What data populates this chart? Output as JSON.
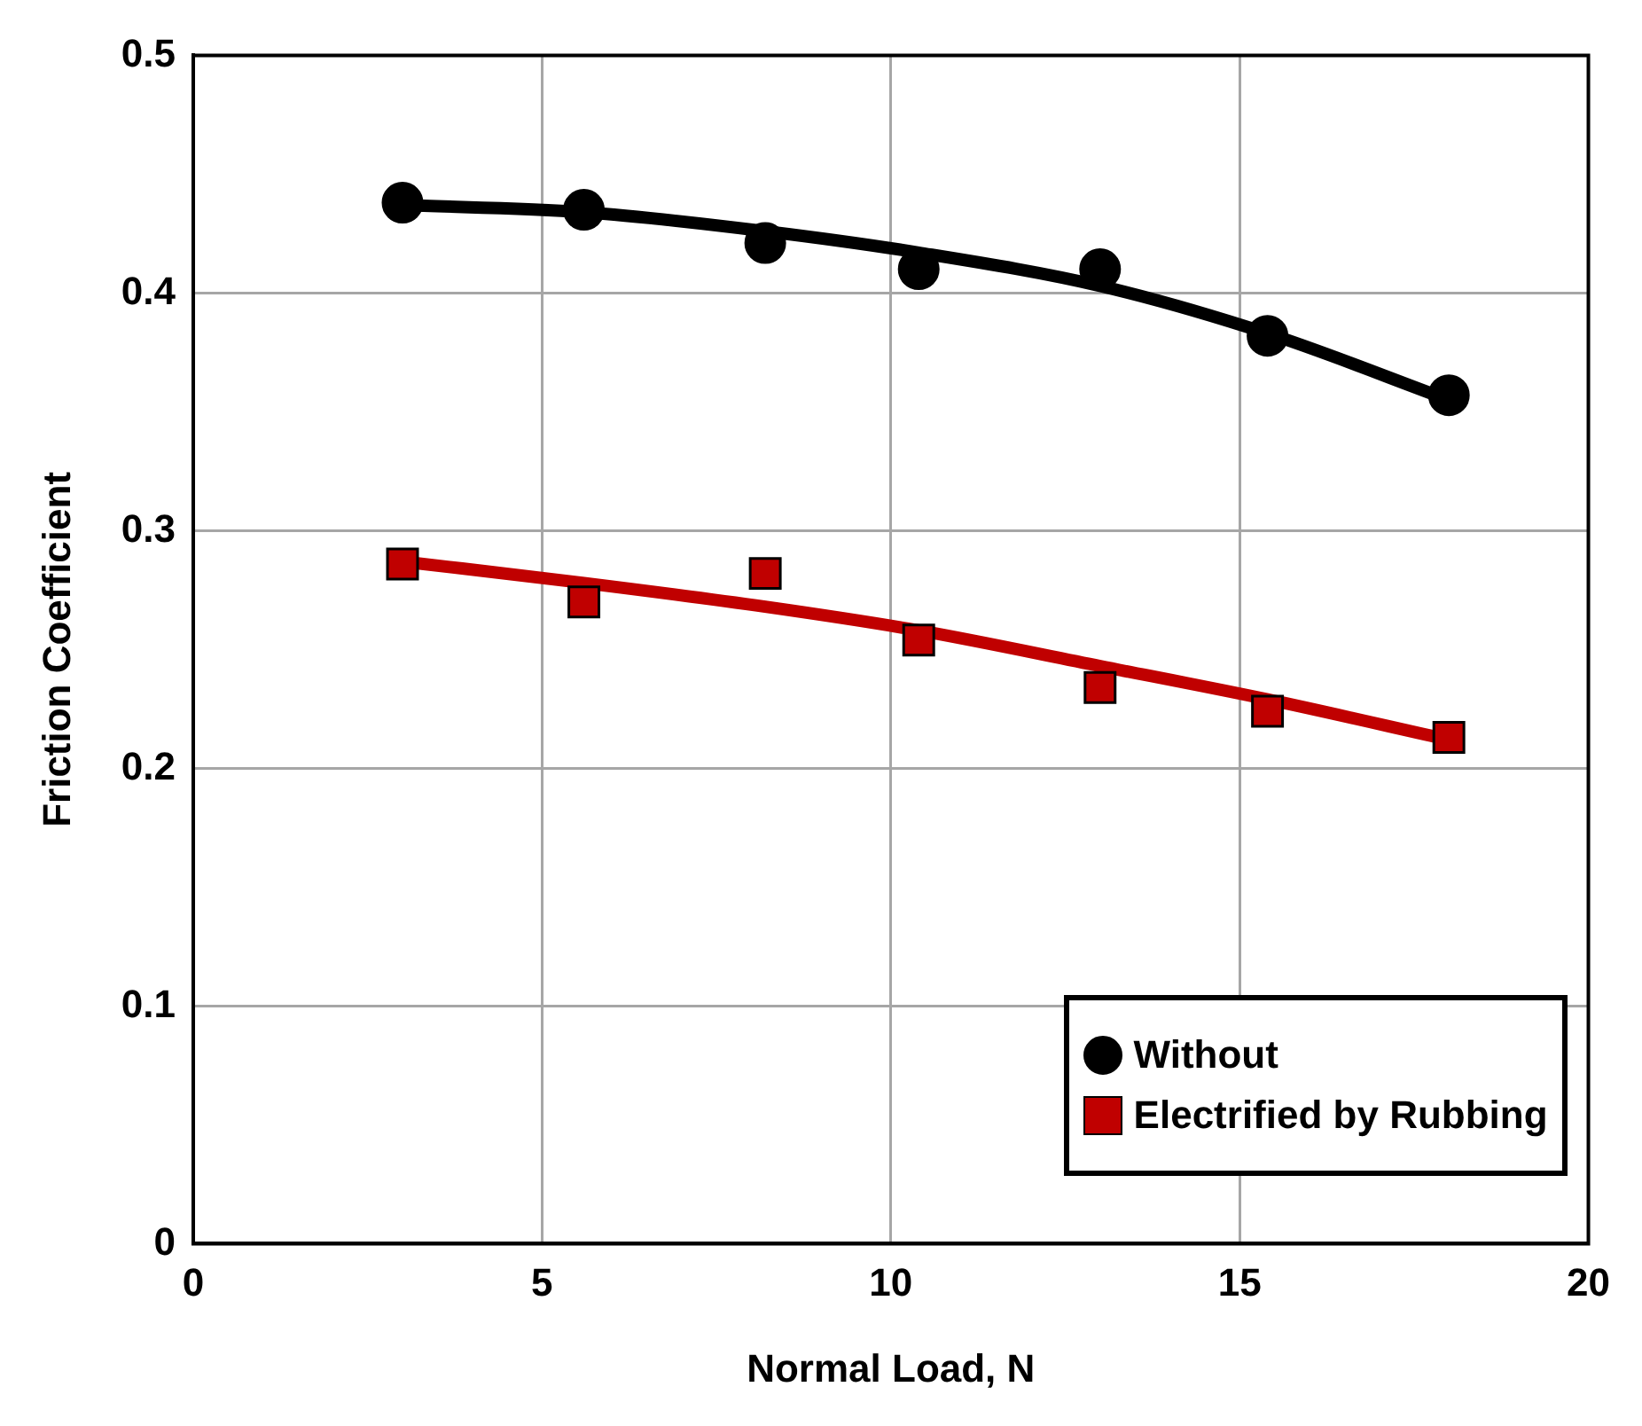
{
  "chart_data": {
    "type": "scatter",
    "xlabel": "Normal Load, N",
    "ylabel": "Friction Coefficient",
    "xlim": [
      0,
      20
    ],
    "xticks": [
      0,
      5,
      10,
      15,
      20
    ],
    "ylim": [
      0,
      0.5
    ],
    "yticks": [
      0,
      0.1,
      0.2,
      0.3,
      0.4,
      0.5
    ],
    "grid": true,
    "legend": "bottom right",
    "series": [
      {
        "name": "Without",
        "marker": "circle",
        "color": "#000000",
        "x": [
          3,
          5.6,
          8.2,
          10.4,
          13,
          15.4,
          18
        ],
        "values": [
          0.438,
          0.435,
          0.421,
          0.41,
          0.41,
          0.382,
          0.357
        ]
      },
      {
        "name": "Electrified by Rubbing",
        "marker": "square",
        "color": "#c00000",
        "x": [
          3,
          5.6,
          8.2,
          10.4,
          13,
          15.4,
          18
        ],
        "values": [
          0.286,
          0.27,
          0.282,
          0.254,
          0.234,
          0.224,
          0.213
        ]
      },
      {
        "type": "line",
        "marker": "none",
        "color": "#000000",
        "x": [
          3,
          5.6,
          8.2,
          10.4,
          13,
          15.4,
          18
        ],
        "values": [
          0.437,
          0.434,
          0.426,
          0.417,
          0.403,
          0.383,
          0.355
        ]
      },
      {
        "type": "line",
        "marker": "none",
        "color": "#c00000",
        "x": [
          3,
          5.6,
          8.2,
          10.4,
          13,
          15.4,
          18
        ],
        "values": [
          0.287,
          0.278,
          0.268,
          0.258,
          0.243,
          0.229,
          0.212
        ]
      }
    ]
  }
}
